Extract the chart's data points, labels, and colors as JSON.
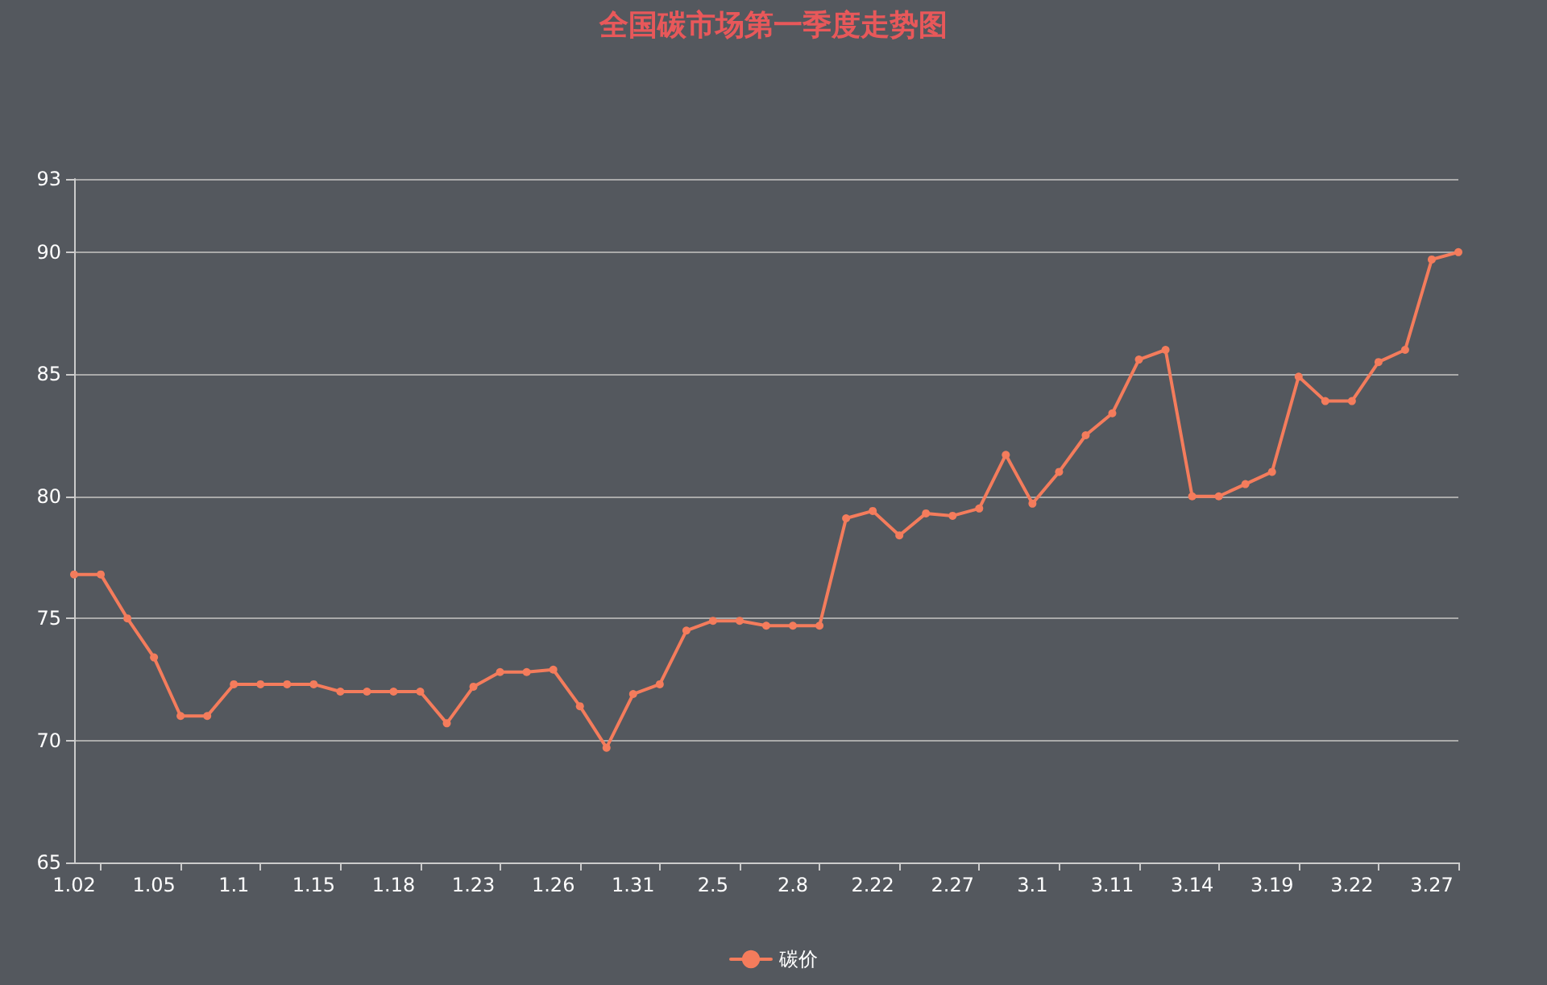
{
  "chart_data": {
    "type": "line",
    "title": "全国碳市场第一季度走势图",
    "categories": [
      "1.02",
      null,
      null,
      "1.05",
      null,
      null,
      "1.1",
      null,
      null,
      "1.15",
      null,
      null,
      "1.18",
      null,
      null,
      "1.23",
      null,
      null,
      "1.26",
      null,
      null,
      "1.31",
      null,
      null,
      "2.5",
      null,
      null,
      "2.8",
      null,
      null,
      "2.22",
      null,
      null,
      "2.27",
      null,
      null,
      "3.1",
      null,
      null,
      "3.11",
      null,
      null,
      "3.14",
      null,
      null,
      "3.19",
      null,
      null,
      "3.22",
      null,
      null,
      "3.27",
      null
    ],
    "series": [
      {
        "name": "碳价",
        "color": "#f47c5c",
        "values": [
          76.8,
          76.8,
          75.0,
          73.4,
          71.0,
          71.0,
          72.3,
          72.3,
          72.3,
          72.3,
          72.0,
          72.0,
          72.0,
          72.0,
          70.7,
          72.2,
          72.8,
          72.8,
          72.9,
          71.4,
          69.7,
          71.9,
          72.3,
          74.5,
          74.9,
          74.9,
          74.7,
          74.7,
          74.7,
          79.1,
          79.4,
          78.4,
          79.3,
          79.2,
          79.5,
          81.7,
          79.7,
          81.0,
          82.5,
          83.4,
          85.6,
          86.0,
          80.0,
          80.0,
          80.5,
          81.0,
          84.9,
          83.9,
          83.9,
          85.5,
          86.0,
          89.7,
          90.0
        ]
      }
    ],
    "ylim": [
      65,
      93
    ],
    "yticks": [
      65,
      70,
      75,
      80,
      85,
      90,
      93
    ],
    "grid": "y",
    "legend": "bottom",
    "marker": "circle",
    "line_style": "solid"
  }
}
